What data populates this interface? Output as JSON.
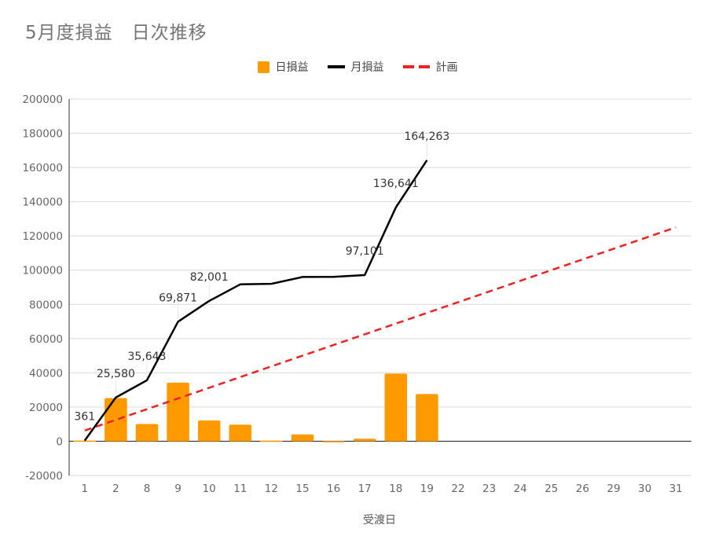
{
  "chart_data": {
    "type": "bar",
    "title": "5月度損益　日次推移",
    "xlabel": "受渡日",
    "ylabel": "",
    "categories": [
      "1",
      "2",
      "8",
      "9",
      "10",
      "11",
      "12",
      "15",
      "16",
      "17",
      "18",
      "19",
      "22",
      "23",
      "24",
      "25",
      "26",
      "29",
      "30",
      "31"
    ],
    "ylim": [
      -20000,
      200000
    ],
    "yticks": [
      -20000,
      0,
      20000,
      40000,
      60000,
      80000,
      100000,
      120000,
      140000,
      160000,
      180000,
      200000
    ],
    "grid": true,
    "legend_position": "top",
    "series": [
      {
        "name": "日損益",
        "type": "bar",
        "color": "#ff9900",
        "values": [
          361,
          25219,
          10063,
          34228,
          12130,
          9700,
          300,
          4000,
          100,
          1500,
          39540,
          27622,
          null,
          null,
          null,
          null,
          null,
          null,
          null,
          null
        ]
      },
      {
        "name": "月損益",
        "type": "line",
        "color": "#000000",
        "values": [
          361,
          25580,
          35643,
          69871,
          82001,
          91701,
          92001,
          96001,
          96101,
          97101,
          136641,
          164263,
          null,
          null,
          null,
          null,
          null,
          null,
          null,
          null
        ],
        "labels": [
          "361",
          "25,580",
          "35,643",
          "69,871",
          "82,001",
          "",
          "",
          "",
          "",
          "97,101",
          "136,641",
          "164,263",
          "",
          "",
          "",
          "",
          "",
          "",
          "",
          ""
        ]
      },
      {
        "name": "計画",
        "type": "line",
        "style": "dashed",
        "color": "#ee2222",
        "values": [
          6250,
          12500,
          18750,
          25000,
          31250,
          37500,
          43750,
          50000,
          56250,
          62500,
          68750,
          75000,
          81250,
          87500,
          93750,
          100000,
          106250,
          112500,
          118750,
          125000
        ]
      }
    ]
  }
}
